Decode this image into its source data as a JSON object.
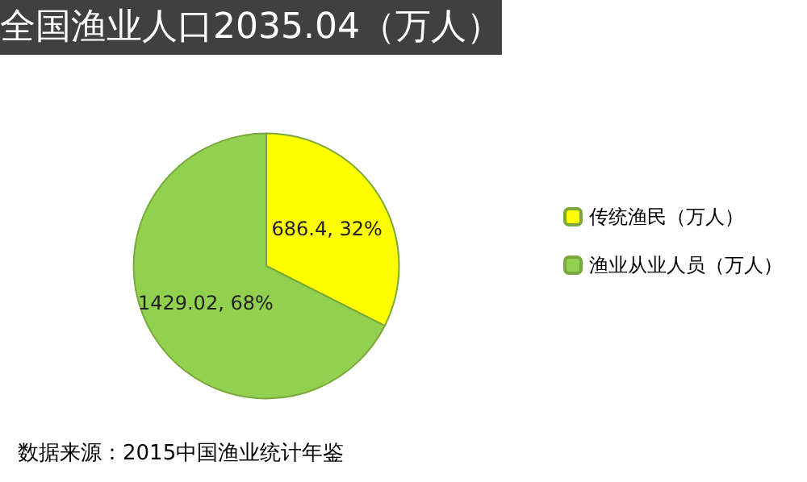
{
  "chart_data": {
    "type": "pie",
    "title": "全国渔业人口2035.04（万人）",
    "categories": [
      "传统渔民（万人）",
      "渔业从业人员（万人）"
    ],
    "values": [
      686.4,
      1429.02
    ],
    "colors": [
      "#ffff00",
      "#92d050"
    ],
    "value_labels": [
      "686.4, 32%",
      "1429.02, 68%"
    ],
    "legend": "right",
    "annotations": [
      "数据来源：2015中国渔业统计年鉴"
    ]
  }
}
